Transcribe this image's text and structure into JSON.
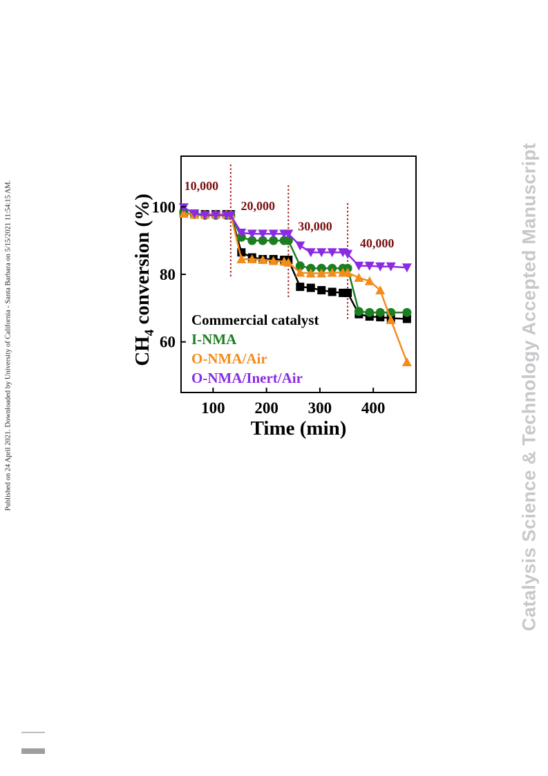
{
  "side_note": "Published on 24 April 2021. Downloaded by University of California - Santa Barbara on 5/15/2021 11:54:15 AM.",
  "watermark": "Catalysis Science & Technology Accepted Manuscript",
  "chart_data": {
    "type": "line",
    "xlabel": "Time (min)",
    "ylabel_prefix": "CH",
    "ylabel_sub": "4",
    "ylabel_suffix": " conversion (%)",
    "xlim": [
      40,
      480
    ],
    "ylim": [
      45,
      115
    ],
    "xticks": [
      100,
      200,
      300,
      400
    ],
    "yticks": [
      60,
      80,
      100
    ],
    "xtick_labels": [
      "100",
      "200",
      "300",
      "400"
    ],
    "ytick_labels": [
      "60",
      "80",
      "100"
    ],
    "dividers_x": [
      133,
      241,
      352
    ],
    "stage_labels": [
      {
        "text": "10,000",
        "x": 78,
        "y": 105
      },
      {
        "text": "20,000",
        "x": 184,
        "y": 99
      },
      {
        "text": "30,000",
        "x": 291,
        "y": 93
      },
      {
        "text": "40,000",
        "x": 407,
        "y": 88
      }
    ],
    "legend_placement": "bottom-left",
    "series": [
      {
        "name": "Commercial catalyst",
        "color": "#000000",
        "marker": "square",
        "x": [
          45,
          65,
          85,
          105,
          125,
          133,
          153,
          173,
          193,
          213,
          233,
          241,
          263,
          283,
          303,
          323,
          343,
          352,
          373,
          393,
          413,
          433,
          463
        ],
        "y": [
          98,
          97.8,
          97.8,
          97.8,
          97.8,
          97.8,
          86.5,
          85,
          84.5,
          84.5,
          84.3,
          84.3,
          76.3,
          76,
          75.3,
          74.8,
          74.5,
          74.5,
          68.2,
          67.5,
          67.3,
          67,
          66.8
        ]
      },
      {
        "name": "I-NMA",
        "color": "#1b7e1f",
        "marker": "circle",
        "x": [
          45,
          65,
          85,
          105,
          125,
          133,
          153,
          173,
          193,
          213,
          233,
          241,
          263,
          283,
          303,
          323,
          343,
          352,
          373,
          393,
          413,
          433,
          463
        ],
        "y": [
          98.3,
          97.7,
          97.5,
          97.5,
          97.5,
          97.5,
          91,
          90,
          90,
          90,
          90,
          90,
          82.5,
          81.8,
          81.8,
          81.8,
          81.8,
          81.8,
          69,
          68.7,
          68.7,
          68.7,
          68.7
        ]
      },
      {
        "name": "O-NMA/Air",
        "color": "#f28c1c",
        "marker": "triangle-up",
        "x": [
          45,
          65,
          85,
          105,
          125,
          133,
          153,
          173,
          193,
          213,
          233,
          241,
          263,
          283,
          303,
          323,
          343,
          352,
          373,
          393,
          413,
          433,
          463
        ],
        "y": [
          98,
          97.7,
          97.7,
          97.8,
          97.8,
          97.8,
          84.5,
          84.5,
          84.3,
          84,
          83.8,
          83.5,
          80.5,
          80.3,
          80.3,
          80.5,
          80.5,
          80.5,
          79,
          78,
          75.3,
          66.5,
          54
        ]
      },
      {
        "name": "O-NMA/Inert/Air",
        "color": "#8a2be2",
        "marker": "triangle-down",
        "x": [
          45,
          65,
          85,
          105,
          125,
          133,
          153,
          173,
          193,
          213,
          233,
          241,
          263,
          283,
          303,
          323,
          343,
          352,
          373,
          393,
          413,
          433,
          463
        ],
        "y": [
          99.8,
          98,
          97.5,
          97.5,
          97.5,
          97.5,
          92.3,
          92,
          92,
          92,
          92,
          92,
          88.5,
          86.5,
          86.5,
          86.5,
          86.5,
          86,
          82.5,
          82.5,
          82.3,
          82.3,
          82
        ]
      }
    ]
  }
}
